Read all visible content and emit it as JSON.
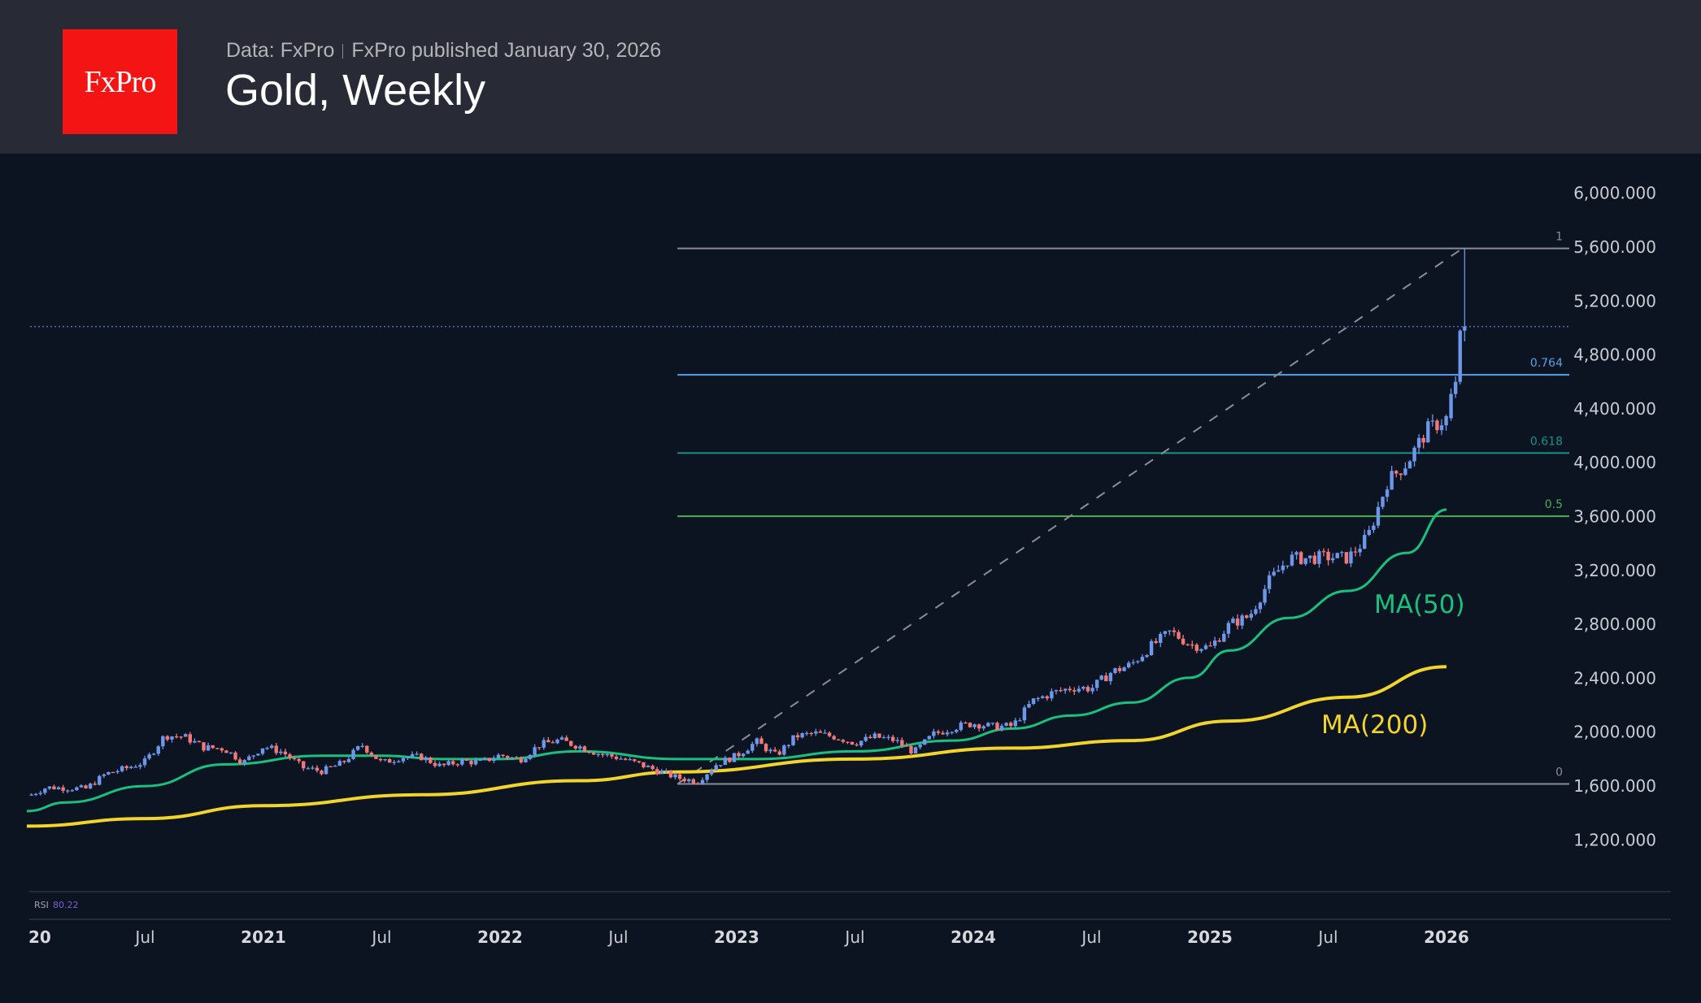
{
  "header": {
    "logo_text": "FxPro",
    "data_source": "Data: FxPro",
    "published": "FxPro published January 30, 2026",
    "title": "Gold, Weekly"
  },
  "colors": {
    "background": "#0d1421",
    "header_bg": "#282b36",
    "logo_red": "#f41414",
    "candle_up": "#6d97ea",
    "candle_down": "#f07878",
    "ma50": "#19c07e",
    "ma200": "#f2d52a",
    "last_price_line": "#4a6fb8"
  },
  "indicator": {
    "label": "RSI",
    "value": "80.22"
  },
  "chart_data": {
    "type": "candlestick",
    "title": "Gold, Weekly",
    "ylim": [
      1000,
      6150
    ],
    "y_ticks": [
      "6,000.000",
      "5,600.000",
      "5,200.000",
      "4,800.000",
      "4,400.000",
      "4,000.000",
      "3,600.000",
      "3,200.000",
      "2,800.000",
      "2,400.000",
      "2,000.000",
      "1,600.000",
      "1,200.000"
    ],
    "y_tick_values": [
      6000,
      5600,
      5200,
      4800,
      4400,
      4000,
      3600,
      3200,
      2800,
      2400,
      2000,
      1600,
      1200
    ],
    "x_ticks": [
      {
        "label": "20",
        "date": "2020-01",
        "year": true
      },
      {
        "label": "Jul",
        "date": "2020-07"
      },
      {
        "label": "2021",
        "date": "2021-01",
        "year": true
      },
      {
        "label": "Jul",
        "date": "2021-07"
      },
      {
        "label": "2022",
        "date": "2022-01",
        "year": true
      },
      {
        "label": "Jul",
        "date": "2022-07"
      },
      {
        "label": "2023",
        "date": "2023-01",
        "year": true
      },
      {
        "label": "Jul",
        "date": "2023-07"
      },
      {
        "label": "2024",
        "date": "2024-01",
        "year": true
      },
      {
        "label": "Jul",
        "date": "2024-07"
      },
      {
        "label": "2025",
        "date": "2025-01",
        "year": true
      },
      {
        "label": "Jul",
        "date": "2025-07"
      },
      {
        "label": "2026",
        "date": "2026-01",
        "year": true
      }
    ],
    "monthly_closes": [
      [
        "2020-01",
        1590
      ],
      [
        "2020-02",
        1585
      ],
      [
        "2020-03",
        1580
      ],
      [
        "2020-04",
        1690
      ],
      [
        "2020-05",
        1730
      ],
      [
        "2020-06",
        1780
      ],
      [
        "2020-07",
        1975
      ],
      [
        "2020-08",
        1965
      ],
      [
        "2020-09",
        1885
      ],
      [
        "2020-10",
        1878
      ],
      [
        "2020-11",
        1775
      ],
      [
        "2020-12",
        1895
      ],
      [
        "2021-01",
        1850
      ],
      [
        "2021-02",
        1735
      ],
      [
        "2021-03",
        1710
      ],
      [
        "2021-04",
        1770
      ],
      [
        "2021-05",
        1905
      ],
      [
        "2021-06",
        1770
      ],
      [
        "2021-07",
        1815
      ],
      [
        "2021-08",
        1815
      ],
      [
        "2021-09",
        1745
      ],
      [
        "2021-10",
        1785
      ],
      [
        "2021-11",
        1775
      ],
      [
        "2021-12",
        1830
      ],
      [
        "2022-01",
        1795
      ],
      [
        "2022-02",
        1905
      ],
      [
        "2022-03",
        1940
      ],
      [
        "2022-04",
        1895
      ],
      [
        "2022-05",
        1840
      ],
      [
        "2022-06",
        1810
      ],
      [
        "2022-07",
        1765
      ],
      [
        "2022-08",
        1712
      ],
      [
        "2022-09",
        1660
      ],
      [
        "2022-10",
        1635
      ],
      [
        "2022-11",
        1765
      ],
      [
        "2022-12",
        1825
      ],
      [
        "2023-01",
        1930
      ],
      [
        "2023-02",
        1825
      ],
      [
        "2023-03",
        1970
      ],
      [
        "2023-04",
        1990
      ],
      [
        "2023-05",
        1965
      ],
      [
        "2023-06",
        1920
      ],
      [
        "2023-07",
        1965
      ],
      [
        "2023-08",
        1940
      ],
      [
        "2023-09",
        1850
      ],
      [
        "2023-10",
        1985
      ],
      [
        "2023-11",
        2035
      ],
      [
        "2023-12",
        2065
      ],
      [
        "2024-01",
        2040
      ],
      [
        "2024-02",
        2045
      ],
      [
        "2024-03",
        2230
      ],
      [
        "2024-04",
        2290
      ],
      [
        "2024-05",
        2330
      ],
      [
        "2024-06",
        2325
      ],
      [
        "2024-07",
        2445
      ],
      [
        "2024-08",
        2500
      ],
      [
        "2024-09",
        2635
      ],
      [
        "2024-10",
        2745
      ],
      [
        "2024-11",
        2650
      ],
      [
        "2024-12",
        2625
      ],
      [
        "2025-01",
        2800
      ],
      [
        "2025-02",
        2860
      ],
      [
        "2025-03",
        3120
      ],
      [
        "2025-04",
        3290
      ],
      [
        "2025-05",
        3290
      ],
      [
        "2025-06",
        3300
      ],
      [
        "2025-07",
        3290
      ],
      [
        "2025-08",
        3445
      ],
      [
        "2025-09",
        3860
      ],
      [
        "2025-10",
        4000
      ],
      [
        "2025-11",
        4240
      ],
      [
        "2025-12",
        4330
      ]
    ],
    "recent_weeks": [
      {
        "o": 4330,
        "h": 4550,
        "l": 4310,
        "c": 4510
      },
      {
        "o": 4510,
        "h": 4640,
        "l": 4480,
        "c": 4600
      },
      {
        "o": 4600,
        "h": 4990,
        "l": 4580,
        "c": 4980
      },
      {
        "o": 4980,
        "h": 5590,
        "l": 4900,
        "c": 5010
      }
    ],
    "last_price": 5010,
    "moving_averages": [
      {
        "name": "MA(50)",
        "color": "#19c07e",
        "points": [
          [
            "2020-01",
            1414
          ],
          [
            "2020-03",
            1478
          ],
          [
            "2020-07",
            1599
          ],
          [
            "2020-11",
            1760
          ],
          [
            "2021-04",
            1825
          ],
          [
            "2021-07",
            1825
          ],
          [
            "2021-10",
            1800
          ],
          [
            "2022-01",
            1800
          ],
          [
            "2022-05",
            1857
          ],
          [
            "2022-10",
            1800
          ],
          [
            "2023-02",
            1800
          ],
          [
            "2023-07",
            1857
          ],
          [
            "2023-12",
            1937
          ],
          [
            "2024-03",
            2026
          ],
          [
            "2024-06",
            2123
          ],
          [
            "2024-09",
            2219
          ],
          [
            "2024-12",
            2404
          ],
          [
            "2025-02",
            2605
          ],
          [
            "2025-05",
            2847
          ],
          [
            "2025-08",
            3048
          ],
          [
            "2025-11",
            3330
          ],
          [
            "2026-01",
            3651
          ]
        ]
      },
      {
        "name": "MA(200)",
        "color": "#f2d52a",
        "points": [
          [
            "2020-01",
            1302
          ],
          [
            "2020-07",
            1358
          ],
          [
            "2021-01",
            1454
          ],
          [
            "2021-09",
            1535
          ],
          [
            "2022-05",
            1639
          ],
          [
            "2022-10",
            1704
          ],
          [
            "2023-07",
            1800
          ],
          [
            "2024-03",
            1881
          ],
          [
            "2024-09",
            1937
          ],
          [
            "2025-02",
            2082
          ],
          [
            "2025-08",
            2259
          ],
          [
            "2026-01",
            2485
          ]
        ]
      }
    ],
    "fibonacci": {
      "start_date": "2022-10",
      "end_date": "2026-01",
      "price_0": 1615,
      "price_1": 5590,
      "levels": [
        {
          "label": "1",
          "ratio": 1,
          "color": "#8a8d94"
        },
        {
          "label": "0.764",
          "ratio": 0.764,
          "color": "#5aa0e6"
        },
        {
          "label": "0.618",
          "ratio": 0.618,
          "color": "#12938a"
        },
        {
          "label": "0.5",
          "ratio": 0.5,
          "color": "#4caf50"
        },
        {
          "label": "0",
          "ratio": 0,
          "color": "#8a8d94"
        }
      ]
    }
  }
}
